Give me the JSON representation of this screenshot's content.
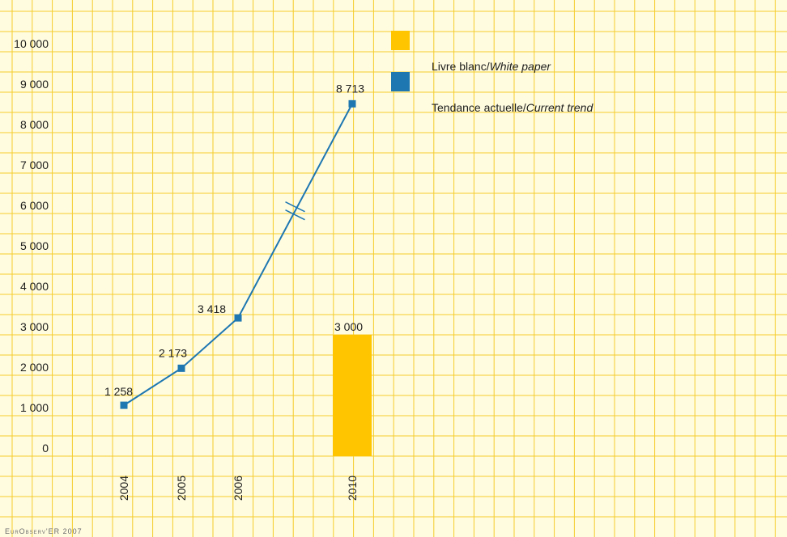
{
  "chart_data": {
    "type": "line",
    "title": "",
    "xlabel": "",
    "ylabel": "",
    "ylim": [
      0,
      10000
    ],
    "yticks": [
      0,
      1000,
      2000,
      3000,
      4000,
      5000,
      6000,
      7000,
      8000,
      9000,
      10000
    ],
    "ytick_labels": [
      "0",
      "1 000",
      "2 000",
      "3 000",
      "4 000",
      "5 000",
      "6 000",
      "7 000",
      "8 000",
      "9 000",
      "10 000"
    ],
    "categories": [
      "2004",
      "2005",
      "2006",
      "2010"
    ],
    "grid": true,
    "axis_break_between": [
      "2006",
      "2010"
    ],
    "legend_position": "top-right",
    "series": [
      {
        "name": "Livre blanc/White paper",
        "name_main": "Livre blanc/",
        "name_en": "White paper",
        "kind": "bar",
        "color": "#ffc600",
        "points": [
          {
            "x": "2010",
            "y": 3000,
            "label": "3 000"
          }
        ]
      },
      {
        "name": "Tendance actuelle/Current trend",
        "name_main": "Tendance actuelle/",
        "name_en": "Current trend",
        "kind": "line",
        "color": "#1e77b1",
        "points": [
          {
            "x": "2004",
            "y": 1258,
            "label": "1 258"
          },
          {
            "x": "2005",
            "y": 2173,
            "label": "2 173"
          },
          {
            "x": "2006",
            "y": 3418,
            "label": "3 418"
          },
          {
            "x": "2010",
            "y": 8713,
            "label": "8 713"
          }
        ]
      }
    ],
    "source": "EurObserv'ER 2007"
  },
  "colors": {
    "background": "#fffce0",
    "grid": "#f5cc2a"
  }
}
